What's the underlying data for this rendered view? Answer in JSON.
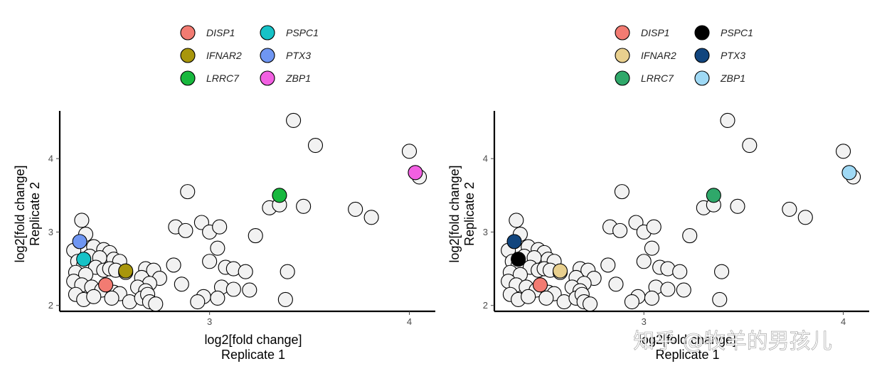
{
  "chart_data": [
    {
      "type": "scatter",
      "xlabel_lines": [
        "log2[fold change]",
        "Replicate 1"
      ],
      "ylabel_lines": [
        "log2[fold change]",
        "Replicate 2"
      ],
      "xticks": [
        "3",
        "4"
      ],
      "yticks": [
        "2",
        "3",
        "4"
      ],
      "xlim": [
        2.25,
        4.13
      ],
      "ylim": [
        1.92,
        4.65
      ],
      "legend_position": "top",
      "background_color": "#f2f2f2",
      "background_points": [
        [
          3.42,
          4.52
        ],
        [
          3.53,
          4.18
        ],
        [
          4.0,
          4.1
        ],
        [
          4.05,
          3.75
        ],
        [
          2.89,
          3.55
        ],
        [
          3.3,
          3.33
        ],
        [
          3.35,
          3.37
        ],
        [
          3.47,
          3.35
        ],
        [
          3.73,
          3.31
        ],
        [
          3.81,
          3.2
        ],
        [
          2.83,
          3.07
        ],
        [
          2.88,
          3.02
        ],
        [
          2.96,
          3.13
        ],
        [
          3.0,
          3.0
        ],
        [
          3.05,
          3.07
        ],
        [
          3.23,
          2.95
        ],
        [
          3.04,
          2.78
        ],
        [
          3.0,
          2.6
        ],
        [
          3.08,
          2.52
        ],
        [
          3.12,
          2.5
        ],
        [
          3.39,
          2.46
        ],
        [
          3.18,
          2.46
        ],
        [
          2.82,
          2.55
        ],
        [
          2.86,
          2.29
        ],
        [
          3.06,
          2.25
        ],
        [
          3.12,
          2.22
        ],
        [
          3.2,
          2.21
        ],
        [
          2.97,
          2.12
        ],
        [
          3.04,
          2.1
        ],
        [
          2.94,
          2.05
        ],
        [
          3.38,
          2.08
        ],
        [
          2.36,
          3.16
        ],
        [
          2.38,
          2.97
        ],
        [
          2.42,
          2.8
        ],
        [
          2.47,
          2.76
        ],
        [
          2.5,
          2.72
        ],
        [
          2.32,
          2.75
        ],
        [
          2.4,
          2.67
        ],
        [
          2.45,
          2.65
        ],
        [
          2.52,
          2.63
        ],
        [
          2.55,
          2.6
        ],
        [
          2.34,
          2.6
        ],
        [
          2.37,
          2.55
        ],
        [
          2.43,
          2.52
        ],
        [
          2.47,
          2.48
        ],
        [
          2.5,
          2.5
        ],
        [
          2.53,
          2.48
        ],
        [
          2.33,
          2.45
        ],
        [
          2.38,
          2.42
        ],
        [
          2.58,
          2.45
        ],
        [
          2.68,
          2.5
        ],
        [
          2.72,
          2.48
        ],
        [
          2.75,
          2.37
        ],
        [
          2.66,
          2.38
        ],
        [
          2.7,
          2.3
        ],
        [
          2.64,
          2.25
        ],
        [
          2.68,
          2.2
        ],
        [
          2.32,
          2.33
        ],
        [
          2.36,
          2.28
        ],
        [
          2.41,
          2.25
        ],
        [
          2.46,
          2.21
        ],
        [
          2.52,
          2.18
        ],
        [
          2.55,
          2.16
        ],
        [
          2.33,
          2.15
        ],
        [
          2.37,
          2.08
        ],
        [
          2.42,
          2.12
        ],
        [
          2.51,
          2.1
        ],
        [
          2.6,
          2.05
        ],
        [
          2.66,
          2.1
        ],
        [
          2.69,
          2.15
        ],
        [
          2.7,
          2.05
        ],
        [
          2.73,
          2.02
        ]
      ],
      "highlight_points": [
        {
          "gene": "DISP1",
          "x": 2.48,
          "y": 2.28,
          "color": "#f27b72"
        },
        {
          "gene": "IFNAR2",
          "x": 2.58,
          "y": 2.47,
          "color": "#a8960c"
        },
        {
          "gene": "LRRC7",
          "x": 3.35,
          "y": 3.5,
          "color": "#18b83e"
        },
        {
          "gene": "PSPC1",
          "x": 2.37,
          "y": 2.63,
          "color": "#16c2c7"
        },
        {
          "gene": "PTX3",
          "x": 2.35,
          "y": 2.87,
          "color": "#6f96f2"
        },
        {
          "gene": "ZBP1",
          "x": 4.03,
          "y": 3.81,
          "color": "#f260e2"
        }
      ],
      "legend": [
        {
          "gene": "DISP1",
          "color": "#f27b72"
        },
        {
          "gene": "IFNAR2",
          "color": "#a8960c"
        },
        {
          "gene": "LRRC7",
          "color": "#18b83e"
        },
        {
          "gene": "PSPC1",
          "color": "#16c2c7"
        },
        {
          "gene": "PTX3",
          "color": "#6f96f2"
        },
        {
          "gene": "ZBP1",
          "color": "#f260e2"
        }
      ]
    },
    {
      "type": "scatter",
      "xlabel_lines": [
        "log2[fold change]",
        "Replicate 1"
      ],
      "ylabel_lines": [
        "log2[fold change]",
        "Replicate 2"
      ],
      "xticks": [
        "3",
        "4"
      ],
      "yticks": [
        "2",
        "3",
        "4"
      ],
      "xlim": [
        2.25,
        4.13
      ],
      "ylim": [
        1.92,
        4.65
      ],
      "legend_position": "top",
      "background_color": "#f2f2f2",
      "background_points": [
        [
          3.42,
          4.52
        ],
        [
          3.53,
          4.18
        ],
        [
          4.0,
          4.1
        ],
        [
          4.05,
          3.75
        ],
        [
          2.89,
          3.55
        ],
        [
          3.3,
          3.33
        ],
        [
          3.35,
          3.37
        ],
        [
          3.47,
          3.35
        ],
        [
          3.73,
          3.31
        ],
        [
          3.81,
          3.2
        ],
        [
          2.83,
          3.07
        ],
        [
          2.88,
          3.02
        ],
        [
          2.96,
          3.13
        ],
        [
          3.0,
          3.0
        ],
        [
          3.05,
          3.07
        ],
        [
          3.23,
          2.95
        ],
        [
          3.04,
          2.78
        ],
        [
          3.0,
          2.6
        ],
        [
          3.08,
          2.52
        ],
        [
          3.12,
          2.5
        ],
        [
          3.39,
          2.46
        ],
        [
          3.18,
          2.46
        ],
        [
          2.82,
          2.55
        ],
        [
          2.86,
          2.29
        ],
        [
          3.06,
          2.25
        ],
        [
          3.12,
          2.22
        ],
        [
          3.2,
          2.21
        ],
        [
          2.97,
          2.12
        ],
        [
          3.04,
          2.1
        ],
        [
          2.94,
          2.05
        ],
        [
          3.38,
          2.08
        ],
        [
          2.36,
          3.16
        ],
        [
          2.38,
          2.97
        ],
        [
          2.42,
          2.8
        ],
        [
          2.47,
          2.76
        ],
        [
          2.5,
          2.72
        ],
        [
          2.32,
          2.75
        ],
        [
          2.4,
          2.67
        ],
        [
          2.45,
          2.65
        ],
        [
          2.52,
          2.63
        ],
        [
          2.55,
          2.6
        ],
        [
          2.34,
          2.6
        ],
        [
          2.37,
          2.55
        ],
        [
          2.43,
          2.52
        ],
        [
          2.47,
          2.48
        ],
        [
          2.5,
          2.5
        ],
        [
          2.53,
          2.48
        ],
        [
          2.33,
          2.45
        ],
        [
          2.38,
          2.42
        ],
        [
          2.58,
          2.45
        ],
        [
          2.68,
          2.5
        ],
        [
          2.72,
          2.48
        ],
        [
          2.75,
          2.37
        ],
        [
          2.66,
          2.38
        ],
        [
          2.7,
          2.3
        ],
        [
          2.64,
          2.25
        ],
        [
          2.68,
          2.2
        ],
        [
          2.32,
          2.33
        ],
        [
          2.36,
          2.28
        ],
        [
          2.41,
          2.25
        ],
        [
          2.46,
          2.21
        ],
        [
          2.52,
          2.18
        ],
        [
          2.55,
          2.16
        ],
        [
          2.33,
          2.15
        ],
        [
          2.37,
          2.08
        ],
        [
          2.42,
          2.12
        ],
        [
          2.51,
          2.1
        ],
        [
          2.6,
          2.05
        ],
        [
          2.66,
          2.1
        ],
        [
          2.69,
          2.15
        ],
        [
          2.7,
          2.05
        ],
        [
          2.73,
          2.02
        ]
      ],
      "highlight_points": [
        {
          "gene": "DISP1",
          "x": 2.48,
          "y": 2.28,
          "color": "#f27b72"
        },
        {
          "gene": "IFNAR2",
          "x": 2.58,
          "y": 2.47,
          "color": "#e9d08e"
        },
        {
          "gene": "LRRC7",
          "x": 3.35,
          "y": 3.5,
          "color": "#2fa86a"
        },
        {
          "gene": "PSPC1",
          "x": 2.37,
          "y": 2.63,
          "color": "#000000"
        },
        {
          "gene": "PTX3",
          "x": 2.35,
          "y": 2.87,
          "color": "#11457e"
        },
        {
          "gene": "ZBP1",
          "x": 4.03,
          "y": 3.81,
          "color": "#9fd9f5"
        }
      ],
      "legend": [
        {
          "gene": "DISP1",
          "color": "#f27b72"
        },
        {
          "gene": "IFNAR2",
          "color": "#e9d08e"
        },
        {
          "gene": "LRRC7",
          "color": "#2fa86a"
        },
        {
          "gene": "PSPC1",
          "color": "#000000"
        },
        {
          "gene": "PTX3",
          "color": "#11457e"
        },
        {
          "gene": "ZBP1",
          "color": "#9fd9f5"
        }
      ]
    }
  ],
  "watermark": "知乎 @牧羊的男孩儿"
}
